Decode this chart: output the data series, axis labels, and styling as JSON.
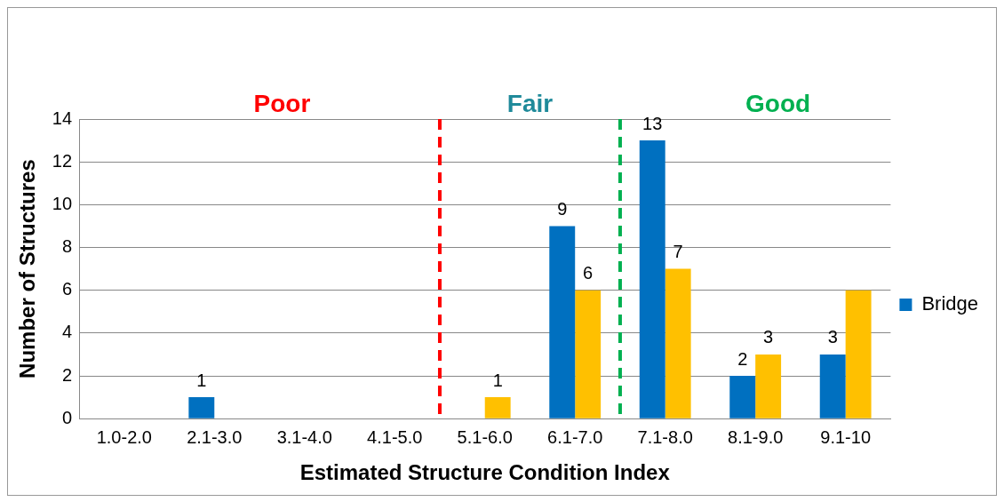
{
  "chart_data": {
    "type": "bar",
    "xlabel": "Estimated Structure Condition Index",
    "ylabel": "Number of Structures",
    "categories": [
      "1.0-2.0",
      "2.1-3.0",
      "3.1-4.0",
      "4.1-5.0",
      "5.1-6.0",
      "6.1-7.0",
      "7.1-8.0",
      "8.1-9.0",
      "9.1-10"
    ],
    "series": [
      {
        "name": "Bridge",
        "color": "#0070c0",
        "values": [
          0,
          1,
          0,
          0,
          0,
          9,
          13,
          2,
          3
        ],
        "value_labels": [
          null,
          "1",
          null,
          null,
          null,
          "9",
          "13",
          "2",
          "3"
        ]
      },
      {
        "color": "#ffc000",
        "values": [
          0,
          0,
          0,
          0,
          1,
          6,
          7,
          3,
          6
        ],
        "value_labels": [
          null,
          null,
          null,
          null,
          "1",
          "6",
          "7",
          "3",
          null
        ]
      }
    ],
    "ylim": [
      0,
      14
    ],
    "yticks": [
      0,
      2,
      4,
      6,
      8,
      10,
      12,
      14
    ],
    "grid": "y",
    "legend": "right",
    "ref_lines": [
      {
        "axis": "x",
        "value": "5.1-6.0",
        "color": "#ff0000",
        "line_style": "dashed"
      },
      {
        "axis": "x",
        "value": "7.1-8.0",
        "color": "#00b050",
        "line_style": "dashed"
      }
    ],
    "annotations": [
      "Poor",
      "Fair",
      "Good"
    ]
  }
}
